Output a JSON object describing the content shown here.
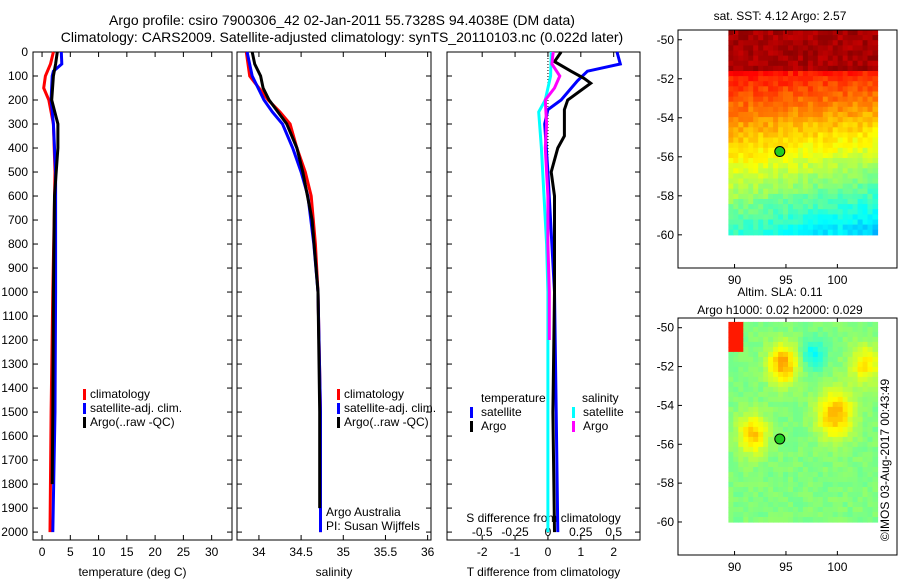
{
  "title_line1": "Argo profile: csiro 7900306_42 02-Jan-2011 55.7328S 94.4038E (DM data)",
  "title_line2": "Climatology: CARS2009. Satellite-adjusted climatology: synTS_20110103.nc (0.022d later)",
  "credit": "©IMOS 03-Aug-2017 00:43:49",
  "colors": {
    "climatology": "#ff0000",
    "satellite": "#0000ff",
    "argo": "#000000",
    "sal_satellite": "#00ffff",
    "sal_argo": "#ff00ff"
  },
  "chart_data": [
    {
      "type": "line",
      "id": "temperature",
      "xlabel": "temperature (deg C)",
      "ylabel": "depth",
      "xlim": [
        -1.6,
        33.6
      ],
      "ylim": [
        2033,
        0
      ],
      "xticks": [
        0,
        5,
        10,
        15,
        20,
        25,
        30
      ],
      "yticks": [
        0,
        100,
        200,
        300,
        400,
        500,
        600,
        700,
        800,
        900,
        1000,
        1100,
        1200,
        1300,
        1400,
        1500,
        1600,
        1700,
        1800,
        1900,
        2000
      ],
      "legend": [
        "climatology",
        "satellite-adj. clim.",
        "Argo(..raw -QC)"
      ],
      "series": [
        {
          "name": "climatology",
          "color": "#ff0000",
          "depth": [
            0,
            50,
            100,
            150,
            200,
            300,
            500,
            1000,
            1500,
            2000
          ],
          "values": [
            2.0,
            1.5,
            0.6,
            0.3,
            1.2,
            2.0,
            2.3,
            1.9,
            1.6,
            1.4
          ]
        },
        {
          "name": "satellite-adj. clim.",
          "color": "#0000ff",
          "depth": [
            0,
            50,
            80,
            100,
            200,
            300,
            500,
            1000,
            1500,
            2000
          ],
          "values": [
            3.4,
            3.5,
            2.0,
            1.8,
            1.6,
            2.0,
            2.4,
            2.4,
            2.3,
            1.9
          ]
        },
        {
          "name": "Argo(..raw -QC)",
          "color": "#000000",
          "depth": [
            0,
            50,
            100,
            200,
            300,
            400,
            600,
            1000,
            1500,
            1800
          ],
          "values": [
            2.7,
            2.4,
            2.0,
            1.7,
            2.8,
            2.8,
            2.2,
            2.0,
            1.9,
            1.8
          ]
        }
      ]
    },
    {
      "type": "line",
      "id": "salinity",
      "xlabel": "salinity",
      "ylabel": "depth",
      "xlim": [
        33.74,
        36.04
      ],
      "ylim": [
        2033,
        0
      ],
      "xticks": [
        34,
        34.5,
        35,
        35.5,
        36
      ],
      "legend": [
        "climatology",
        "satellite-adj. clim.",
        "Argo(..raw -QC)"
      ],
      "annotation": [
        "Argo Australia",
        "PI: Susan Wijffels"
      ],
      "series": [
        {
          "name": "climatology",
          "color": "#ff0000",
          "depth": [
            0,
            100,
            200,
            250,
            300,
            400,
            500,
            600,
            800,
            1000,
            1500,
            2000
          ],
          "values": [
            33.85,
            33.89,
            34.11,
            34.25,
            34.37,
            34.45,
            34.55,
            34.62,
            34.67,
            34.7,
            34.73,
            34.73
          ]
        },
        {
          "name": "satellite-adj. clim.",
          "color": "#0000ff",
          "depth": [
            0,
            100,
            200,
            250,
            300,
            400,
            500,
            600,
            800,
            1000,
            1500,
            2000
          ],
          "values": [
            33.86,
            33.92,
            34.06,
            34.16,
            34.28,
            34.4,
            34.5,
            34.58,
            34.65,
            34.7,
            34.73,
            34.73
          ]
        },
        {
          "name": "Argo(..raw -QC)",
          "color": "#000000",
          "depth": [
            0,
            50,
            100,
            150,
            200,
            300,
            400,
            500,
            700,
            1000,
            1500,
            1900
          ],
          "values": [
            33.92,
            33.95,
            34.02,
            34.05,
            34.12,
            34.33,
            34.45,
            34.52,
            34.63,
            34.7,
            34.72,
            34.72
          ]
        }
      ]
    },
    {
      "type": "line",
      "id": "differences",
      "xlabel": "T difference from climatology",
      "x2label": "S difference from climatology",
      "xlim": [
        -3.07,
        2.8
      ],
      "ylim": [
        2033,
        0
      ],
      "xticks": [
        -2,
        -1,
        0,
        1,
        2
      ],
      "x2ticks": [
        -0.5,
        -0.25,
        0,
        0.25,
        0.5
      ],
      "legend": {
        "temperature": "temperature",
        "salinity": "salinity",
        "satellite": "satellite",
        "argo": "Argo"
      },
      "series": [
        {
          "name": "temperature satellite",
          "color": "#0000ff",
          "unit": "T",
          "depth": [
            0,
            50,
            80,
            120,
            200,
            240,
            300,
            500,
            1000,
            1500,
            2000
          ],
          "values": [
            2.1,
            2.2,
            1.2,
            0.9,
            0.4,
            0.0,
            -0.1,
            0.0,
            0.2,
            0.25,
            0.3
          ]
        },
        {
          "name": "temperature Argo",
          "color": "#000000",
          "unit": "T",
          "depth": [
            0,
            40,
            80,
            110,
            130,
            200,
            240,
            350,
            400,
            500,
            600,
            1000,
            1500,
            2000
          ],
          "values": [
            0.4,
            0.2,
            0.7,
            1.1,
            1.3,
            0.6,
            0.5,
            0.5,
            0.3,
            0.1,
            0.2,
            0.2,
            0.15,
            0.2
          ]
        },
        {
          "name": "salinity satellite",
          "color": "#00ffff",
          "unit": "S",
          "depth": [
            0,
            100,
            200,
            250,
            400,
            600,
            800,
            1000,
            1500,
            2000
          ],
          "values": [
            0.025,
            0.02,
            -0.02,
            -0.07,
            -0.05,
            -0.03,
            -0.01,
            0.0,
            0.0,
            0.0
          ]
        },
        {
          "name": "salinity Argo",
          "color": "#ff00ff",
          "unit": "S",
          "depth": [
            0,
            50,
            100,
            150,
            200,
            300,
            400,
            600,
            800,
            1000,
            1200
          ],
          "values": [
            0.04,
            0.03,
            0.09,
            0.05,
            -0.02,
            -0.01,
            -0.02,
            0.0,
            0.0,
            0.01,
            0.01
          ]
        }
      ]
    }
  ],
  "maps": [
    {
      "id": "sst",
      "title_lines": [
        "sat. SST: 4.12 Argo: 2.57"
      ],
      "lon_ticks": [
        90,
        95,
        100
      ],
      "lat_ticks": [
        -50,
        -52,
        -54,
        -56,
        -58,
        -60
      ],
      "lon_range": [
        84.5,
        105.8
      ],
      "lat_range": [
        -61.7,
        -49.5
      ],
      "data_lon": [
        89.4,
        103.9
      ],
      "data_lat": [
        -60,
        -49.5
      ],
      "float_position": [
        94.4,
        -55.73
      ]
    },
    {
      "id": "sla",
      "title_lines": [
        "Altim. SLA: 0.11",
        "Argo h1000: 0.02 h2000: 0.029"
      ],
      "lon_ticks": [
        90,
        95,
        100
      ],
      "lat_ticks": [
        -50,
        -52,
        -54,
        -56,
        -58,
        -60
      ],
      "lon_range": [
        84.5,
        105.8
      ],
      "lat_range": [
        -61.7,
        -49.5
      ],
      "data_lon": [
        89.4,
        103.9
      ],
      "data_lat": [
        -60,
        -49.7
      ],
      "float_position": [
        94.4,
        -55.73
      ]
    }
  ]
}
